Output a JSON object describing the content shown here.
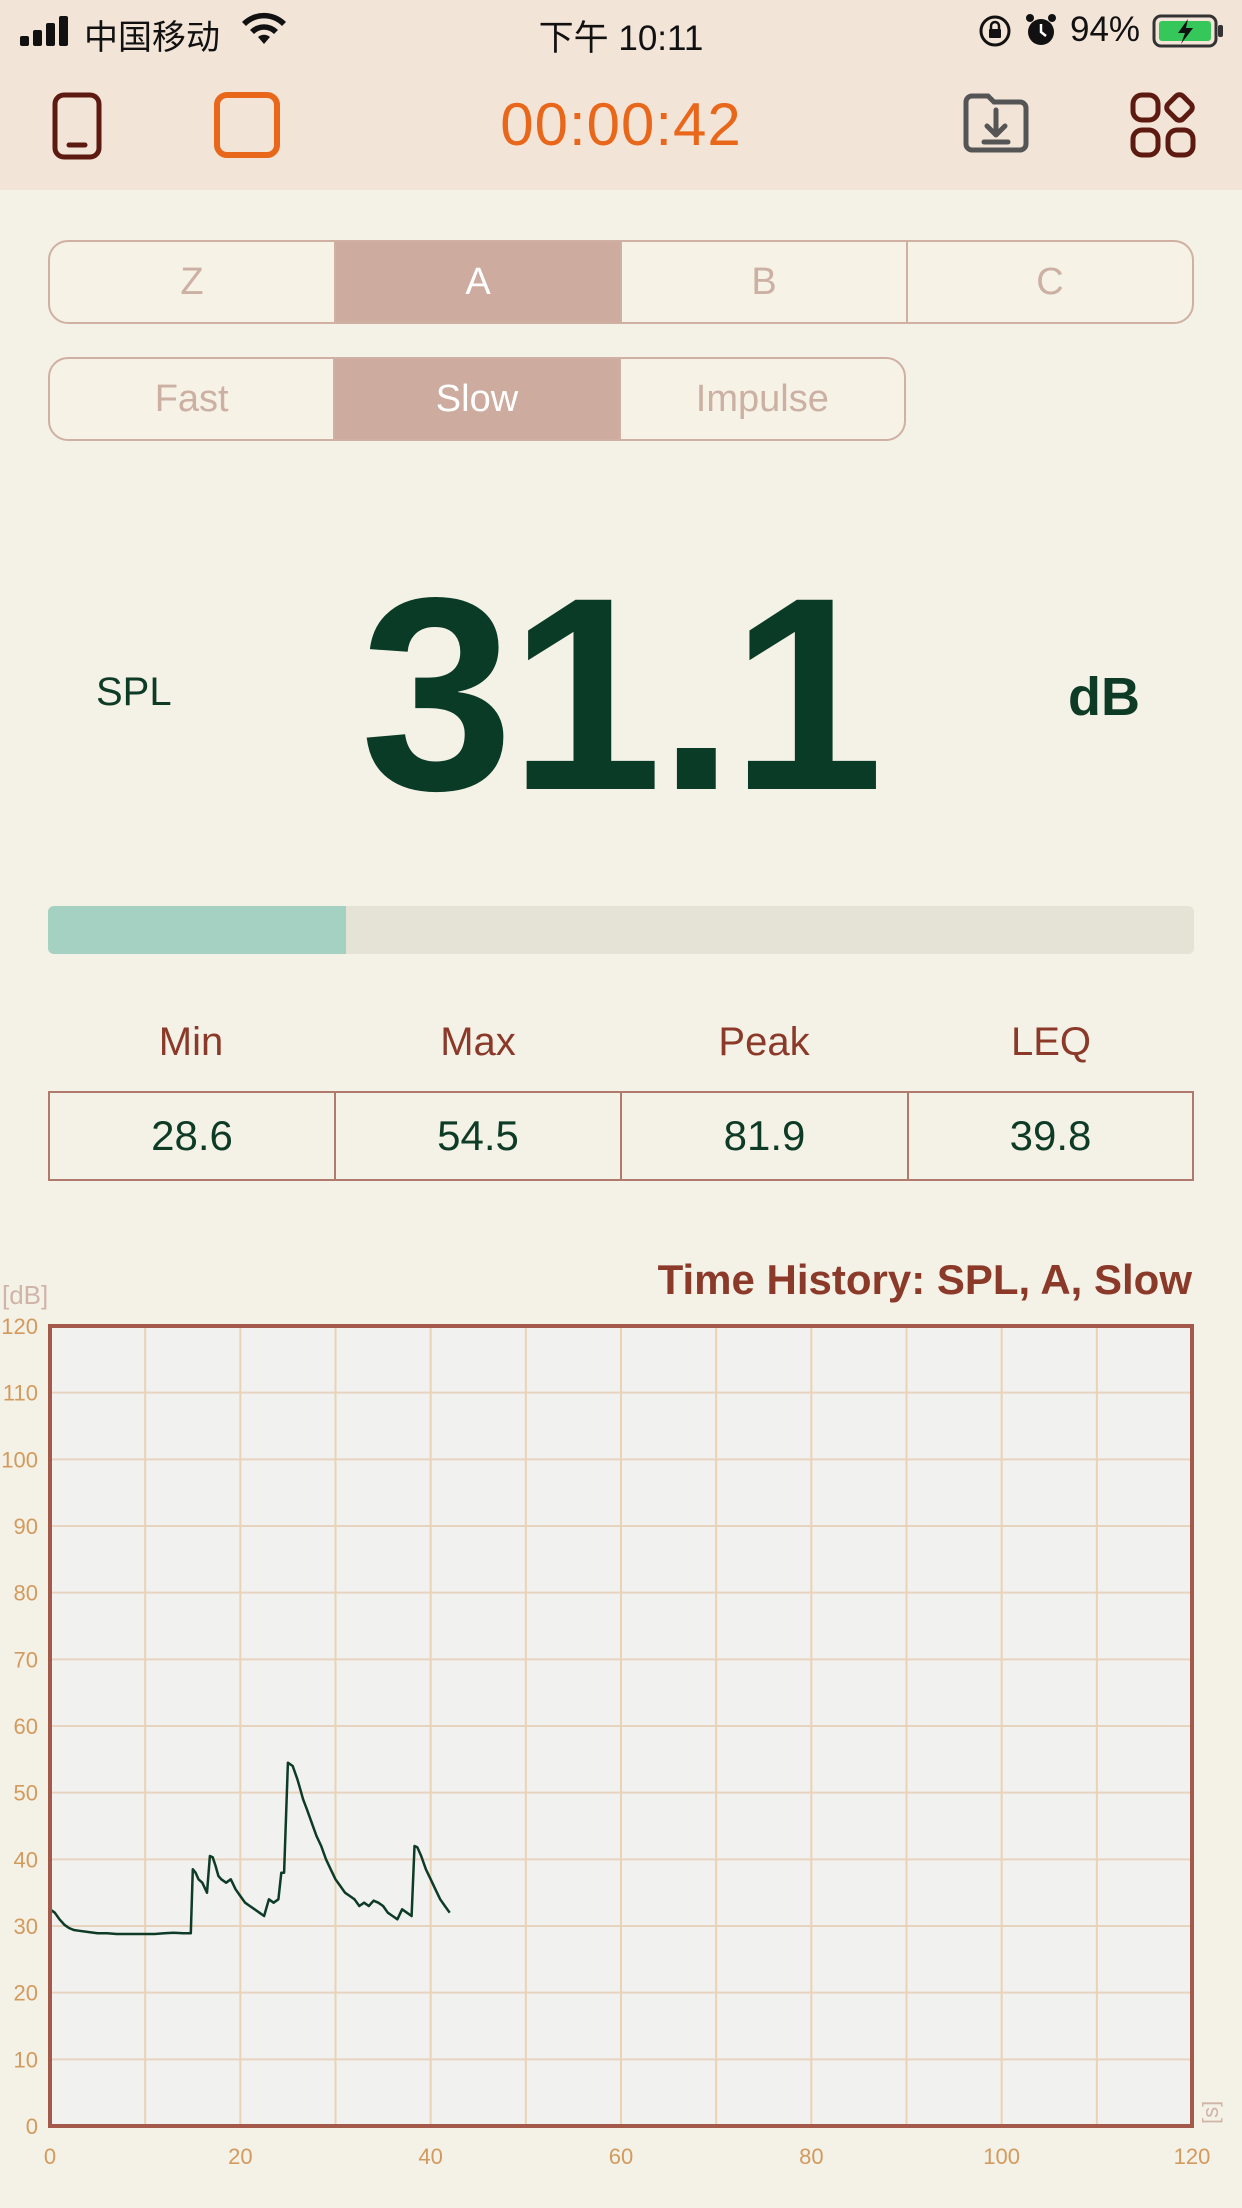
{
  "status_bar": {
    "carrier": "中国移动",
    "time": "下午 10:11",
    "battery": "94%"
  },
  "toolbar": {
    "timer": "00:00:42",
    "icons": [
      "phone-icon",
      "square-icon",
      "download-folder-icon",
      "apps-grid-icon"
    ],
    "accent_color": "#e8671b"
  },
  "weighting": {
    "options": [
      "Z",
      "A",
      "B",
      "C"
    ],
    "selected": "A"
  },
  "response": {
    "options": [
      "Fast",
      "Slow",
      "Impulse"
    ],
    "selected": "Slow"
  },
  "reading": {
    "label": "SPL",
    "value": "31.1",
    "unit": "dB",
    "level_fraction": 0.26
  },
  "stats": {
    "min_label": "Min",
    "min_value": "28.6",
    "max_label": "Max",
    "max_value": "54.5",
    "peak_label": "Peak",
    "peak_value": "81.9",
    "leq_label": "LEQ",
    "leq_value": "39.8"
  },
  "chart_data": {
    "type": "line",
    "title": "Time History: SPL, A, Slow",
    "ylabel": "[dB]",
    "xlabel": "[s]",
    "xlim": [
      0,
      120
    ],
    "ylim": [
      0,
      120
    ],
    "x_ticks": [
      0,
      20,
      40,
      60,
      80,
      100,
      120
    ],
    "y_ticks": [
      0,
      10,
      20,
      30,
      40,
      50,
      60,
      70,
      80,
      90,
      100,
      110,
      120
    ],
    "grid": true,
    "series": [
      {
        "color": "#0e3b26",
        "x": [
          0,
          0.5,
          1,
          1.5,
          2,
          2.5,
          3,
          4,
          5,
          6,
          7,
          8,
          9,
          10,
          11,
          12,
          13,
          14,
          14.5,
          14.8,
          15.0,
          15.3,
          15.6,
          16.0,
          16.5,
          16.8,
          17.1,
          17.4,
          17.7,
          18.0,
          18.5,
          19.0,
          19.5,
          20.0,
          20.5,
          21.0,
          21.5,
          22.0,
          22.5,
          23.0,
          23.5,
          24.0,
          24.3,
          24.6,
          25.0,
          25.5,
          26.0,
          26.3,
          26.6,
          27.0,
          27.5,
          28.0,
          28.5,
          29.0,
          29.5,
          30.0,
          30.5,
          31.0,
          31.5,
          32.0,
          32.5,
          33.0,
          33.5,
          34.0,
          34.5,
          35.0,
          35.5,
          36.0,
          36.5,
          37.0,
          37.5,
          38.0,
          38.3,
          38.6,
          39.0,
          39.5,
          40.0,
          40.5,
          41.0,
          41.5,
          42.0
        ],
        "y": [
          32.5,
          32.0,
          31.0,
          30.2,
          29.7,
          29.4,
          29.3,
          29.1,
          28.9,
          28.9,
          28.8,
          28.8,
          28.8,
          28.8,
          28.8,
          28.9,
          29.0,
          28.9,
          28.9,
          28.9,
          38.5,
          38.0,
          37.0,
          36.5,
          35.0,
          40.5,
          40.3,
          39.0,
          37.5,
          37.0,
          36.5,
          37.0,
          35.5,
          34.5,
          33.5,
          33.0,
          32.5,
          32.0,
          31.5,
          34.0,
          33.5,
          34.0,
          38.0,
          38.0,
          54.5,
          54.0,
          52.0,
          50.5,
          49.0,
          47.5,
          45.5,
          43.5,
          42.0,
          40.0,
          38.5,
          37.0,
          36.0,
          35.0,
          34.5,
          34.0,
          33.0,
          33.5,
          33.0,
          33.8,
          33.5,
          33.0,
          32.0,
          31.5,
          31.0,
          32.5,
          32.0,
          31.5,
          42.0,
          41.8,
          40.5,
          38.5,
          37.0,
          35.5,
          34.0,
          33.0,
          32.0
        ]
      }
    ]
  }
}
